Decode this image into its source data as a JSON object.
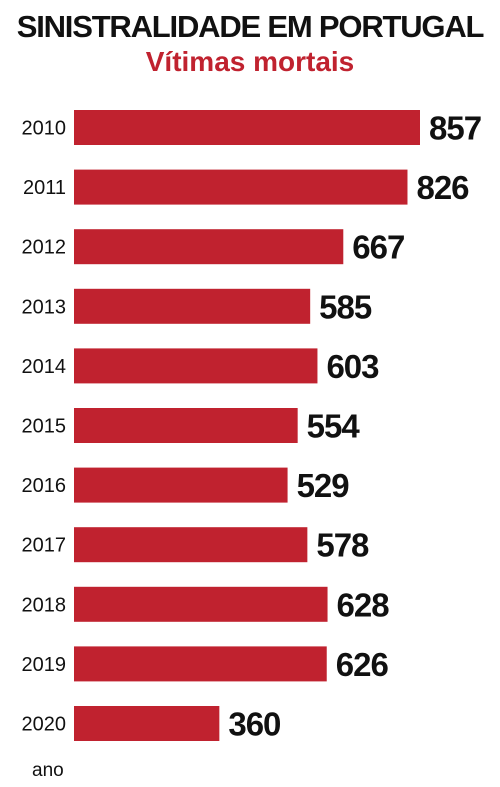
{
  "header": {
    "title": "SINISTRALIDADE EM PORTUGAL",
    "subtitle": "Vítimas mortais"
  },
  "colors": {
    "bar": "#c0222f",
    "subtitle": "#c0222f",
    "text": "#111111"
  },
  "chart_data": {
    "type": "bar",
    "orientation": "horizontal",
    "title": "SINISTRALIDADE EM PORTUGAL",
    "subtitle": "Vítimas mortais",
    "xlabel": "ano",
    "ylabel": "",
    "categories": [
      "2010",
      "2011",
      "2012",
      "2013",
      "2014",
      "2015",
      "2016",
      "2017",
      "2018",
      "2019",
      "2020"
    ],
    "values": [
      857,
      826,
      667,
      585,
      603,
      554,
      529,
      578,
      628,
      626,
      360
    ],
    "data_labels": [
      "857",
      "826",
      "667",
      "585",
      "603",
      "554",
      "529",
      "578",
      "628",
      "626",
      "360"
    ],
    "xlim": [
      0,
      857
    ],
    "grid": false,
    "legend": "none"
  }
}
